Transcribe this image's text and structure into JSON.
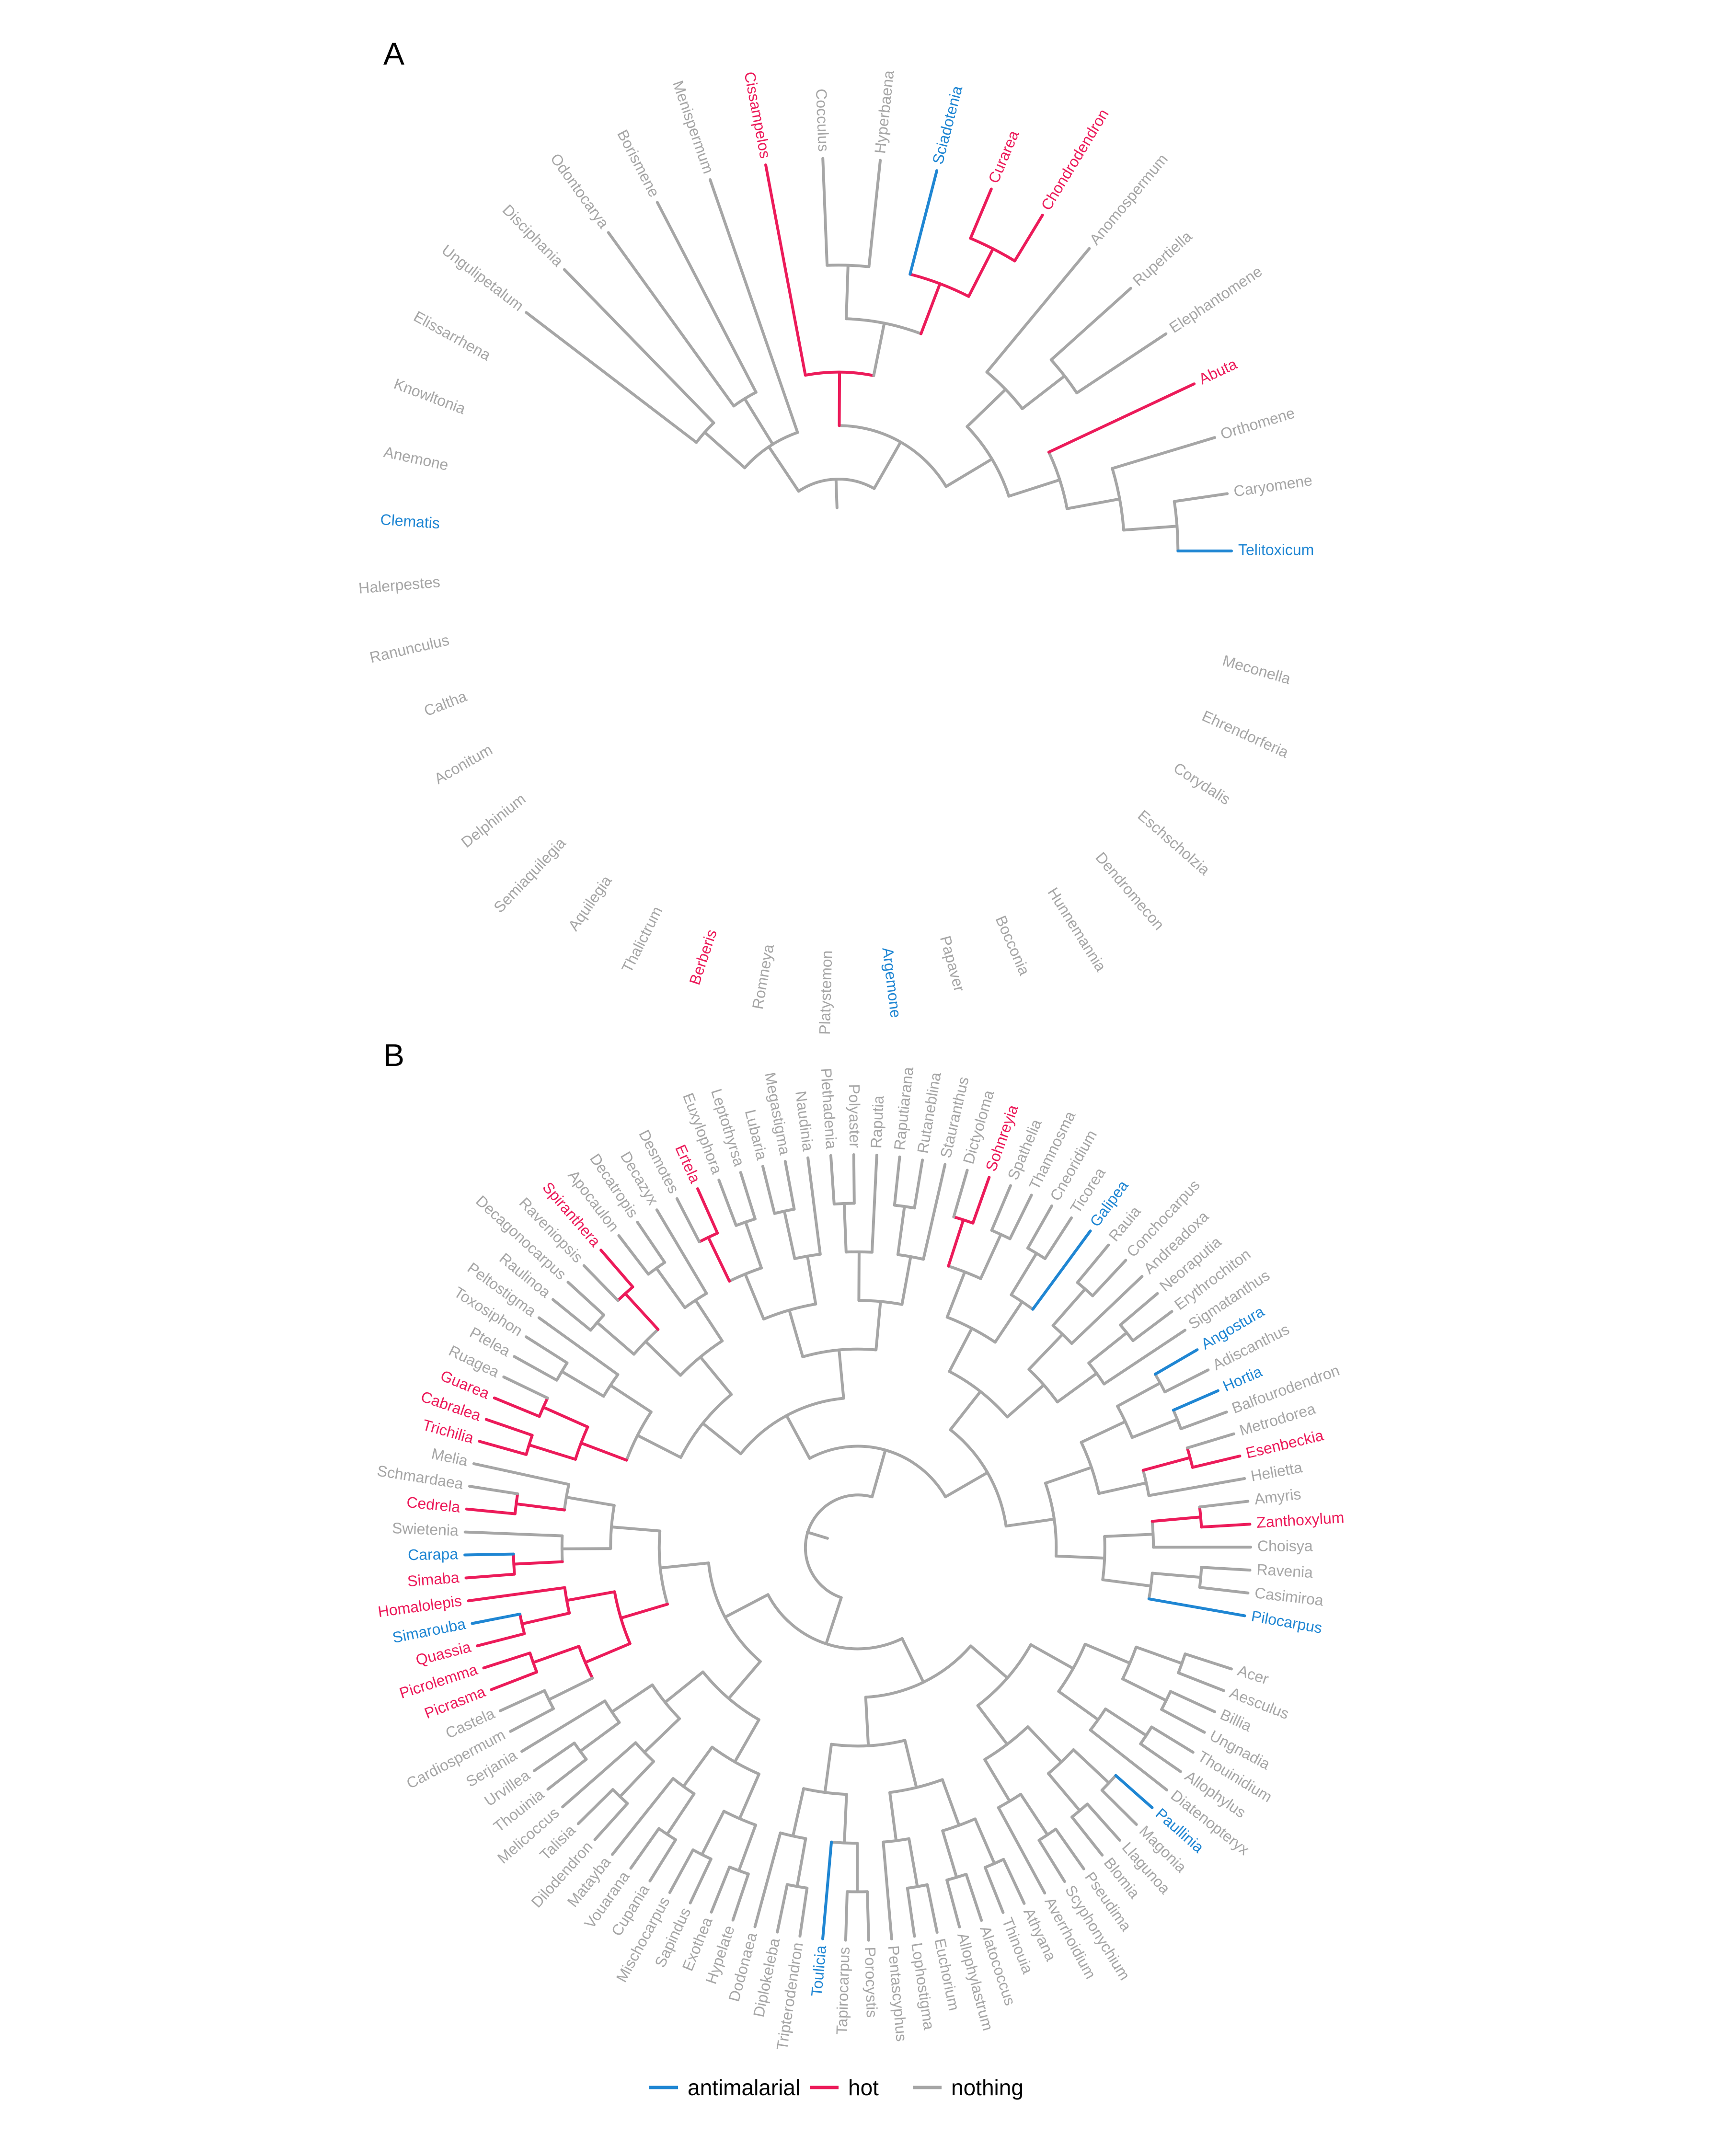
{
  "colors": {
    "antimalarial": "#1f86d3",
    "hot": "#ec1b5a",
    "nothing": "#a6a6a6"
  },
  "legend": [
    {
      "key": "antimalarial",
      "label": "antimalarial"
    },
    {
      "key": "hot",
      "label": "hot"
    },
    {
      "key": "nothing",
      "label": "nothing"
    }
  ],
  "panels": [
    {
      "letter": "A",
      "taxa": [
        {
          "name": "Telitoxicum",
          "cat": "antimalarial"
        },
        {
          "name": "Caryomene",
          "cat": "nothing"
        },
        {
          "name": "Orthomene",
          "cat": "nothing"
        },
        {
          "name": "Abuta",
          "cat": "hot"
        },
        {
          "name": "Elephantomene",
          "cat": "nothing"
        },
        {
          "name": "Rupertiella",
          "cat": "nothing"
        },
        {
          "name": "Anomospermum",
          "cat": "nothing"
        },
        {
          "name": "Chondrodendron",
          "cat": "hot"
        },
        {
          "name": "Curarea",
          "cat": "hot"
        },
        {
          "name": "Sciadotenia",
          "cat": "antimalarial"
        },
        {
          "name": "Hyperbaena",
          "cat": "nothing"
        },
        {
          "name": "Cocculus",
          "cat": "nothing"
        },
        {
          "name": "Cissampelos",
          "cat": "hot"
        },
        {
          "name": "Menispermum",
          "cat": "nothing"
        },
        {
          "name": "Borismene",
          "cat": "nothing"
        },
        {
          "name": "Odontocarya",
          "cat": "nothing"
        },
        {
          "name": "Disciphania",
          "cat": "nothing"
        },
        {
          "name": "Ungulipetalum",
          "cat": "nothing"
        },
        {
          "name": "Elissarrhena",
          "cat": "nothing"
        },
        {
          "name": "Knowltonia",
          "cat": "nothing"
        },
        {
          "name": "Anemone",
          "cat": "nothing"
        },
        {
          "name": "Clematis",
          "cat": "antimalarial"
        },
        {
          "name": "Halerpestes",
          "cat": "nothing"
        },
        {
          "name": "Ranunculus",
          "cat": "nothing"
        },
        {
          "name": "Caltha",
          "cat": "nothing"
        },
        {
          "name": "Aconitum",
          "cat": "nothing"
        },
        {
          "name": "Delphinium",
          "cat": "nothing"
        },
        {
          "name": "Semiaquilegia",
          "cat": "nothing"
        },
        {
          "name": "Aquilegia",
          "cat": "nothing"
        },
        {
          "name": "Thalictrum",
          "cat": "nothing"
        },
        {
          "name": "Berberis",
          "cat": "hot"
        },
        {
          "name": "Romneya",
          "cat": "nothing"
        },
        {
          "name": "Platystemon",
          "cat": "nothing"
        },
        {
          "name": "Argemone",
          "cat": "antimalarial"
        },
        {
          "name": "Papaver",
          "cat": "nothing"
        },
        {
          "name": "Bocconia",
          "cat": "nothing"
        },
        {
          "name": "Hunnemannia",
          "cat": "nothing"
        },
        {
          "name": "Dendromecon",
          "cat": "nothing"
        },
        {
          "name": "Eschscholzia",
          "cat": "nothing"
        },
        {
          "name": "Corydalis",
          "cat": "nothing"
        },
        {
          "name": "Ehrendorferia",
          "cat": "nothing"
        },
        {
          "name": "Meconella",
          "cat": "nothing"
        }
      ]
    },
    {
      "letter": "B",
      "taxa": [
        {
          "name": "Pilocarpus",
          "cat": "antimalarial"
        },
        {
          "name": "Casimiroa",
          "cat": "nothing"
        },
        {
          "name": "Ravenia",
          "cat": "nothing"
        },
        {
          "name": "Choisya",
          "cat": "nothing"
        },
        {
          "name": "Zanthoxylum",
          "cat": "hot"
        },
        {
          "name": "Amyris",
          "cat": "nothing"
        },
        {
          "name": "Helietta",
          "cat": "nothing"
        },
        {
          "name": "Esenbeckia",
          "cat": "hot"
        },
        {
          "name": "Metrodorea",
          "cat": "nothing"
        },
        {
          "name": "Balfourodendron",
          "cat": "nothing"
        },
        {
          "name": "Hortia",
          "cat": "antimalarial"
        },
        {
          "name": "Adiscanthus",
          "cat": "nothing"
        },
        {
          "name": "Angostura",
          "cat": "antimalarial"
        },
        {
          "name": "Sigmatanthus",
          "cat": "nothing"
        },
        {
          "name": "Erythrochiton",
          "cat": "nothing"
        },
        {
          "name": "Neoraputia",
          "cat": "nothing"
        },
        {
          "name": "Andreadoxa",
          "cat": "nothing"
        },
        {
          "name": "Conchocarpus",
          "cat": "nothing"
        },
        {
          "name": "Rauia",
          "cat": "nothing"
        },
        {
          "name": "Galipea",
          "cat": "antimalarial"
        },
        {
          "name": "Ticorea",
          "cat": "nothing"
        },
        {
          "name": "Cneoridium",
          "cat": "nothing"
        },
        {
          "name": "Thamnosma",
          "cat": "nothing"
        },
        {
          "name": "Spathelia",
          "cat": "nothing"
        },
        {
          "name": "Sohnreyia",
          "cat": "hot"
        },
        {
          "name": "Dictyoloma",
          "cat": "nothing"
        },
        {
          "name": "Stauranthus",
          "cat": "nothing"
        },
        {
          "name": "Rutaneblina",
          "cat": "nothing"
        },
        {
          "name": "Raputiarana",
          "cat": "nothing"
        },
        {
          "name": "Raputia",
          "cat": "nothing"
        },
        {
          "name": "Polyaster",
          "cat": "nothing"
        },
        {
          "name": "Plethadenia",
          "cat": "nothing"
        },
        {
          "name": "Naudinia",
          "cat": "nothing"
        },
        {
          "name": "Megastigma",
          "cat": "nothing"
        },
        {
          "name": "Lubaria",
          "cat": "nothing"
        },
        {
          "name": "Leptothyrsa",
          "cat": "nothing"
        },
        {
          "name": "Euxylophora",
          "cat": "nothing"
        },
        {
          "name": "Ertela",
          "cat": "hot"
        },
        {
          "name": "Desmotes",
          "cat": "nothing"
        },
        {
          "name": "Decazyx",
          "cat": "nothing"
        },
        {
          "name": "Decatropis",
          "cat": "nothing"
        },
        {
          "name": "Apocaulon",
          "cat": "nothing"
        },
        {
          "name": "Spiranthera",
          "cat": "hot"
        },
        {
          "name": "Raveniopsis",
          "cat": "nothing"
        },
        {
          "name": "Decagonocarpus",
          "cat": "nothing"
        },
        {
          "name": "Raulinoa",
          "cat": "nothing"
        },
        {
          "name": "Peltostigma",
          "cat": "nothing"
        },
        {
          "name": "Toxosiphon",
          "cat": "nothing"
        },
        {
          "name": "Ptelea",
          "cat": "nothing"
        },
        {
          "name": "Ruagea",
          "cat": "nothing"
        },
        {
          "name": "Guarea",
          "cat": "hot"
        },
        {
          "name": "Cabralea",
          "cat": "hot"
        },
        {
          "name": "Trichilia",
          "cat": "hot"
        },
        {
          "name": "Melia",
          "cat": "nothing"
        },
        {
          "name": "Schmardaea",
          "cat": "nothing"
        },
        {
          "name": "Cedrela",
          "cat": "hot"
        },
        {
          "name": "Swietenia",
          "cat": "nothing"
        },
        {
          "name": "Carapa",
          "cat": "antimalarial"
        },
        {
          "name": "Simaba",
          "cat": "hot"
        },
        {
          "name": "Homalolepis",
          "cat": "hot"
        },
        {
          "name": "Simarouba",
          "cat": "antimalarial"
        },
        {
          "name": "Quassia",
          "cat": "hot"
        },
        {
          "name": "Picrolemma",
          "cat": "hot"
        },
        {
          "name": "Picrasma",
          "cat": "hot"
        },
        {
          "name": "Castela",
          "cat": "nothing"
        },
        {
          "name": "Cardiospermum",
          "cat": "nothing"
        },
        {
          "name": "Serjania",
          "cat": "nothing"
        },
        {
          "name": "Urvillea",
          "cat": "nothing"
        },
        {
          "name": "Thouinia",
          "cat": "nothing"
        },
        {
          "name": "Melicoccus",
          "cat": "nothing"
        },
        {
          "name": "Talisia",
          "cat": "nothing"
        },
        {
          "name": "Dilodendron",
          "cat": "nothing"
        },
        {
          "name": "Matayba",
          "cat": "nothing"
        },
        {
          "name": "Vouarana",
          "cat": "nothing"
        },
        {
          "name": "Cupania",
          "cat": "nothing"
        },
        {
          "name": "Mischocarpus",
          "cat": "nothing"
        },
        {
          "name": "Sapindus",
          "cat": "nothing"
        },
        {
          "name": "Exothea",
          "cat": "nothing"
        },
        {
          "name": "Hypelate",
          "cat": "nothing"
        },
        {
          "name": "Dodonaea",
          "cat": "nothing"
        },
        {
          "name": "Diplokeleba",
          "cat": "nothing"
        },
        {
          "name": "Tripterodendron",
          "cat": "nothing"
        },
        {
          "name": "Toulicia",
          "cat": "antimalarial"
        },
        {
          "name": "Tapirocarpus",
          "cat": "nothing"
        },
        {
          "name": "Porocystis",
          "cat": "nothing"
        },
        {
          "name": "Pentascyphus",
          "cat": "nothing"
        },
        {
          "name": "Lophostigma",
          "cat": "nothing"
        },
        {
          "name": "Euchorium",
          "cat": "nothing"
        },
        {
          "name": "Allophylastrum",
          "cat": "nothing"
        },
        {
          "name": "Alatococcus",
          "cat": "nothing"
        },
        {
          "name": "Thinouia",
          "cat": "nothing"
        },
        {
          "name": "Athyana",
          "cat": "nothing"
        },
        {
          "name": "Averrhoidium",
          "cat": "nothing"
        },
        {
          "name": "Scyphonychium",
          "cat": "nothing"
        },
        {
          "name": "Pseudima",
          "cat": "nothing"
        },
        {
          "name": "Blomia",
          "cat": "nothing"
        },
        {
          "name": "Llagunoa",
          "cat": "nothing"
        },
        {
          "name": "Magonia",
          "cat": "nothing"
        },
        {
          "name": "Paullinia",
          "cat": "antimalarial"
        },
        {
          "name": "Diatenopteryx",
          "cat": "nothing"
        },
        {
          "name": "Allophylus",
          "cat": "nothing"
        },
        {
          "name": "Thouinidium",
          "cat": "nothing"
        },
        {
          "name": "Ungnadia",
          "cat": "nothing"
        },
        {
          "name": "Billia",
          "cat": "nothing"
        },
        {
          "name": "Aesculus",
          "cat": "nothing"
        },
        {
          "name": "Acer",
          "cat": "nothing"
        }
      ]
    }
  ]
}
